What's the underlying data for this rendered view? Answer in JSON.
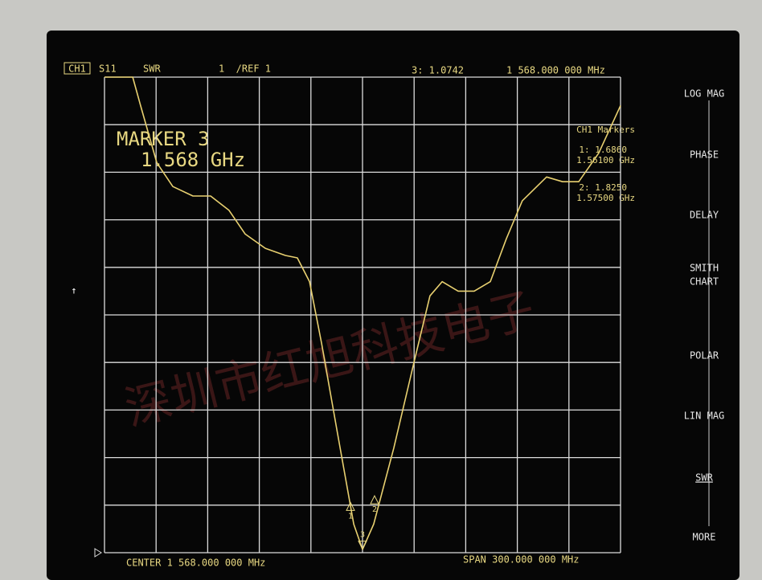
{
  "header": {
    "channel": "CH1",
    "parameter": "S11",
    "format": "SWR",
    "scale": "1  /REF 1",
    "active_readout": "3: 1.0742",
    "active_frequency": "1 568.000 000 MHz"
  },
  "marker_box": {
    "title": "MARKER 3",
    "frequency": "1.568 GHz"
  },
  "marker_list": {
    "title": "CH1 Markers",
    "entries": [
      {
        "readout": "1: 1.6860",
        "frequency": "1.56100 GHz"
      },
      {
        "readout": "2: 1.8250",
        "frequency": "1.57500 GHz"
      }
    ]
  },
  "softkeys": [
    "LOG MAG",
    "PHASE",
    "DELAY",
    "SMITH",
    "CHART",
    "POLAR",
    "LIN MAG",
    "SWR",
    "MORE"
  ],
  "footer": {
    "center": "CENTER 1 568.000 000 MHz",
    "span": "SPAN 300.000 000 MHz"
  },
  "watermark": "深圳市红旭科技电子",
  "chart_data": {
    "type": "line",
    "x": [
      1418,
      1434.4,
      1439,
      1448.4,
      1457.7,
      1469.4,
      1479.7,
      1490.4,
      1499.8,
      1511.5,
      1523.2,
      1530.1,
      1537.2,
      1544.2,
      1553.5,
      1562.9,
      1568,
      1574.5,
      1586.2,
      1597.9,
      1607.2,
      1614.3,
      1623.6,
      1632.9,
      1642.3,
      1651.6,
      1660.9,
      1675,
      1684.3,
      1693.7,
      1705.3,
      1718
    ],
    "series": [
      {
        "name": "S11",
        "color": "#e8d070",
        "values": [
          11,
          11,
          10.4,
          9.2,
          8.7,
          8.5,
          8.5,
          8.2,
          7.7,
          7.4,
          7.25,
          7.2,
          6.7,
          5.4,
          3.5,
          1.6,
          1.07,
          1.6,
          3.2,
          5.0,
          6.4,
          6.7,
          6.5,
          6.5,
          6.7,
          7.6,
          8.4,
          8.9,
          8.8,
          8.8,
          9.4,
          10.4
        ]
      }
    ],
    "xlim": [
      1418,
      1718
    ],
    "ylim": [
      1,
      11
    ],
    "xticks": [
      1418,
      1448,
      1478,
      1508,
      1538,
      1568,
      1598,
      1628,
      1658,
      1688,
      1718
    ],
    "yticks": [
      1,
      2,
      3,
      4,
      5,
      6,
      7,
      8,
      9,
      10,
      11
    ],
    "grid": true,
    "markers": [
      {
        "label": "1",
        "x": 1561,
        "value": 1.686
      },
      {
        "label": "3",
        "x": 1568,
        "value": 1.0742
      },
      {
        "label": "2",
        "x": 1575,
        "value": 1.825
      }
    ]
  }
}
